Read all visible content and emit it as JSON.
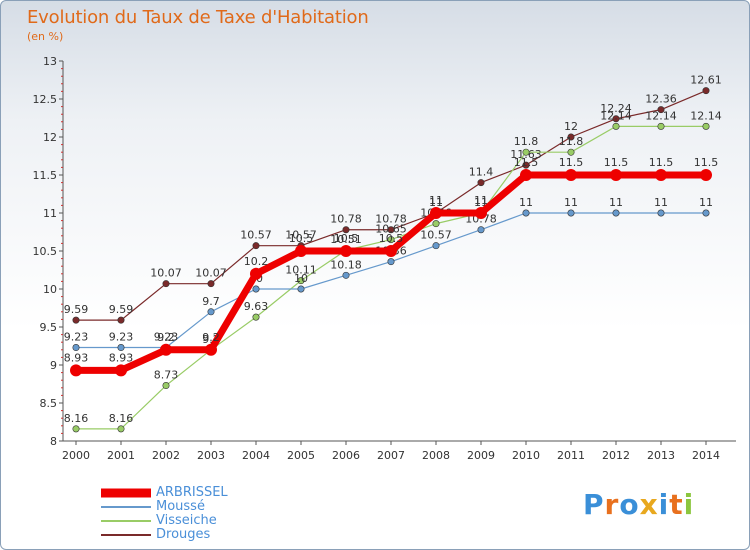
{
  "title": "Evolution du Taux de Taxe d'Habitation",
  "subtitle": "(en %)",
  "logo": {
    "letters": [
      "P",
      "r",
      "o",
      "x",
      "i",
      "t",
      "i"
    ],
    "colors": [
      "#3a8fd8",
      "#e8701e",
      "#3a8fd8",
      "#e8a81e",
      "#3a8fd8",
      "#e8701e",
      "#8cc63e"
    ]
  },
  "chart_data": {
    "type": "line",
    "x": [
      2000,
      2001,
      2002,
      2003,
      2004,
      2005,
      2006,
      2007,
      2008,
      2009,
      2010,
      2011,
      2012,
      2013,
      2014
    ],
    "ylim": [
      8,
      13
    ],
    "yticks": [
      "8",
      "8.5",
      "9",
      "9.5",
      "10",
      "10.5",
      "11",
      "11.5",
      "12",
      "12.5",
      "13"
    ],
    "grid": false,
    "legend_position": "bottom-left",
    "series": [
      {
        "name": "Drouges",
        "color": "#7a2a2a",
        "width": 1.2,
        "values": [
          9.59,
          9.59,
          10.07,
          10.07,
          10.57,
          10.57,
          10.78,
          10.78,
          11,
          11.4,
          11.63,
          12,
          12.24,
          12.36,
          12.61
        ],
        "labels": [
          "9.59",
          "9.59",
          "10.07",
          "10.07",
          "10.57",
          "10.57",
          "10.78",
          "10.78",
          "11",
          "11.4",
          "11.63",
          "12",
          "12.24",
          "12.36",
          "12.61"
        ]
      },
      {
        "name": "Visseiche",
        "color": "#99cc66",
        "width": 1.2,
        "values": [
          8.16,
          8.16,
          8.73,
          9.2,
          9.63,
          10.11,
          10.51,
          10.65,
          10.86,
          11,
          11.8,
          11.8,
          12.14,
          12.14,
          12.14
        ],
        "labels": [
          "8.16",
          "8.16",
          "8.73",
          "9.2",
          "9.63",
          "10.11",
          "10.51",
          "10.65",
          "10.86",
          "11",
          "11.8",
          "11.8",
          "12.14",
          "12.14",
          "12.14"
        ]
      },
      {
        "name": "Moussé",
        "color": "#6699cc",
        "width": 1.2,
        "values": [
          9.23,
          9.23,
          9.23,
          9.7,
          10,
          10,
          10.18,
          10.36,
          10.57,
          10.78,
          11,
          11,
          11,
          11,
          11
        ],
        "labels": [
          "9.23",
          "9.23",
          "9.23",
          "9.7",
          "10",
          "10",
          "10.18",
          "10.36",
          "10.57",
          "10.78",
          "11",
          "11",
          "11",
          "11",
          "11"
        ]
      },
      {
        "name": "ARBRISSEL",
        "color": "#ee0000",
        "width": 7,
        "values": [
          8.93,
          8.93,
          9.2,
          9.2,
          10.2,
          10.5,
          10.5,
          10.5,
          11,
          11,
          11.5,
          11.5,
          11.5,
          11.5,
          11.5
        ],
        "labels": [
          "8.93",
          "8.93",
          "9.2",
          "9.2",
          "10.2",
          "10.5",
          "10.5",
          "10.5",
          "11",
          "11",
          "11.5",
          "11.5",
          "11.5",
          "11.5",
          "11.5"
        ]
      }
    ]
  }
}
